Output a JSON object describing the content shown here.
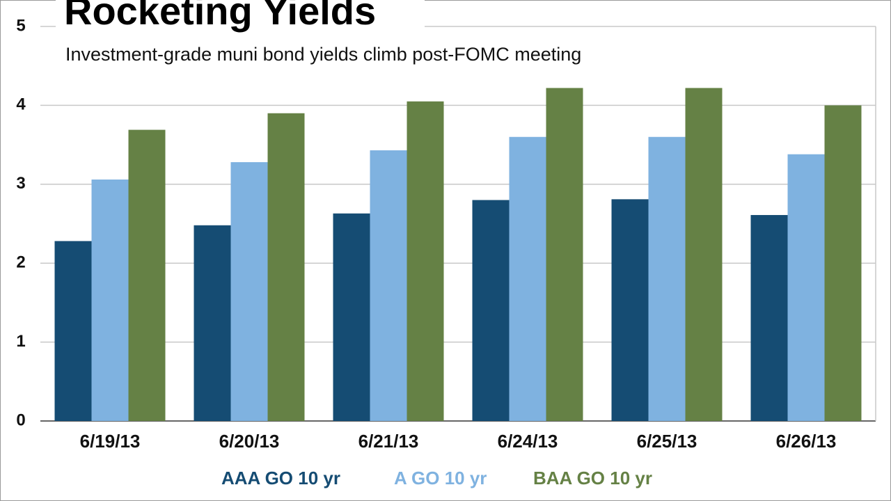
{
  "chart_data": {
    "type": "bar",
    "title": "Rocketing Yields",
    "subtitle": "Investment-grade muni bond yields climb post-FOMC meeting",
    "categories": [
      "6/19/13",
      "6/20/13",
      "6/21/13",
      "6/24/13",
      "6/25/13",
      "6/26/13"
    ],
    "series": [
      {
        "name": "AAA GO 10 yr",
        "color": "#154c73",
        "values": [
          2.28,
          2.48,
          2.63,
          2.8,
          2.81,
          2.61
        ]
      },
      {
        "name": "A GO 10 yr",
        "color": "#7fb2e0",
        "values": [
          3.06,
          3.28,
          3.43,
          3.6,
          3.6,
          3.38
        ]
      },
      {
        "name": "BAA GO 10 yr",
        "color": "#658145",
        "values": [
          3.69,
          3.9,
          4.05,
          4.22,
          4.22,
          4.0
        ]
      }
    ],
    "ylim": [
      0,
      5
    ],
    "yticks": [
      0,
      1,
      2,
      3,
      4,
      5
    ],
    "grid": true
  }
}
